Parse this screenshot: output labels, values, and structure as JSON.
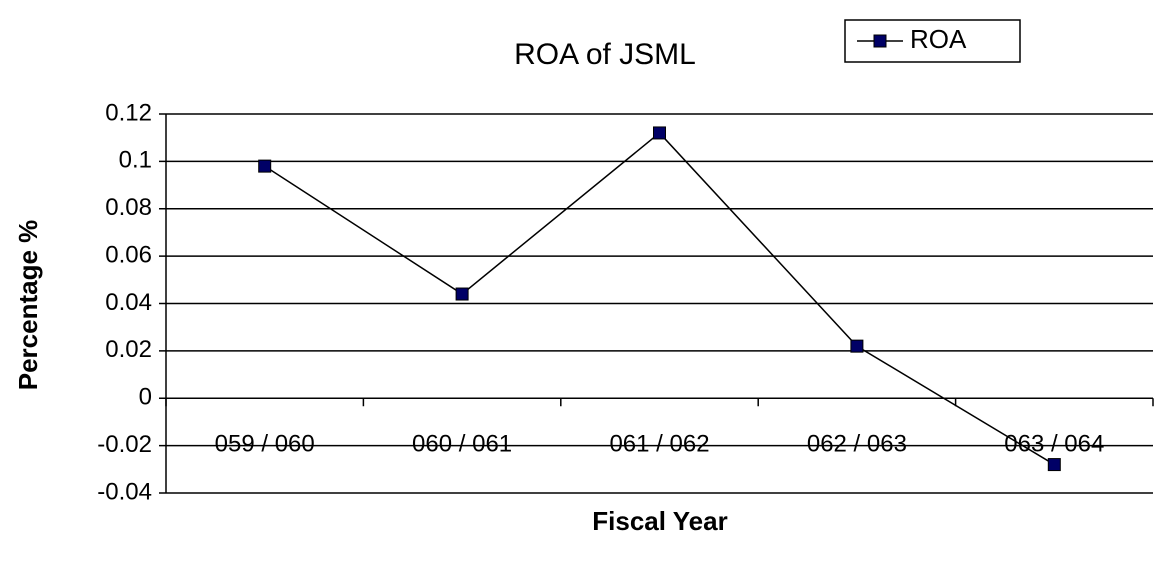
{
  "chart_data": {
    "type": "line",
    "title": "ROA of JSML",
    "xlabel": "Fiscal Year",
    "ylabel": "Percentage %",
    "categories": [
      "059 / 060",
      "060 / 061",
      "061 / 062",
      "062 / 063",
      "063 / 064"
    ],
    "series": [
      {
        "name": "ROA",
        "color": "#000066",
        "values": [
          0.098,
          0.044,
          0.112,
          0.022,
          -0.028
        ]
      }
    ],
    "ylim": [
      -0.04,
      0.12
    ],
    "yticks": [
      -0.04,
      -0.02,
      0,
      0.02,
      0.04,
      0.06,
      0.08,
      0.1,
      0.12
    ],
    "grid": true,
    "legend": "top-right"
  }
}
